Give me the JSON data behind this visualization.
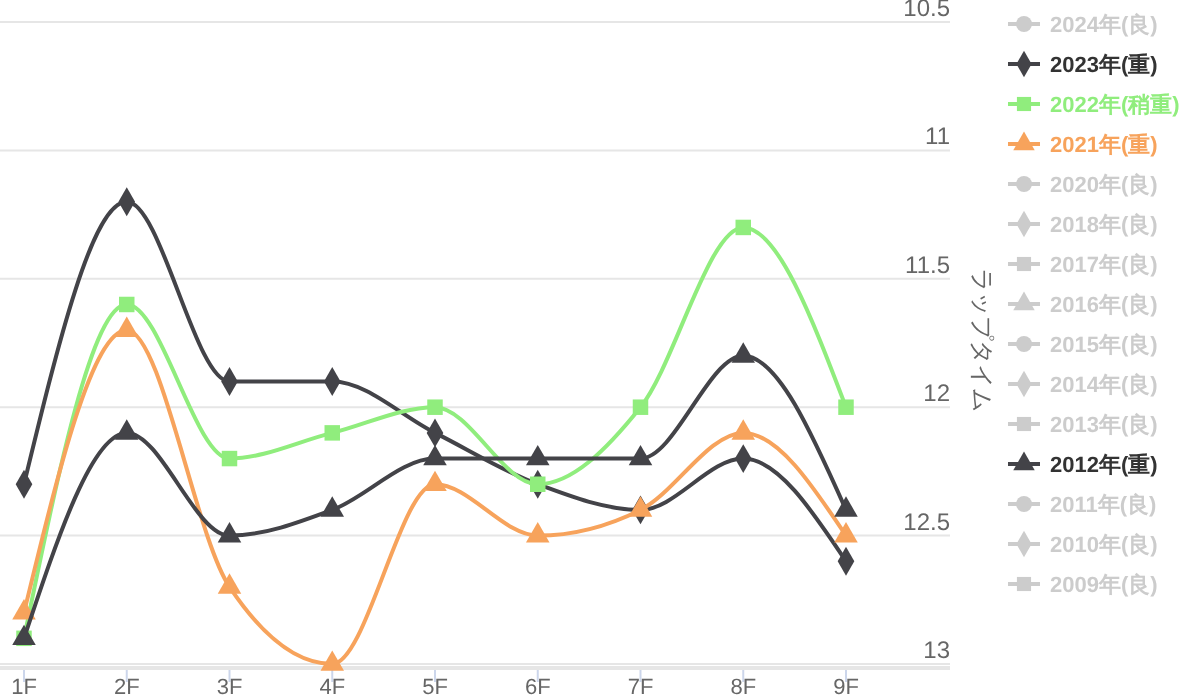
{
  "chart_data": {
    "type": "line",
    "ylabel": "ラップタイム",
    "categories": [
      "1F",
      "2F",
      "3F",
      "4F",
      "5F",
      "6F",
      "7F",
      "8F",
      "9F"
    ],
    "ylim": [
      13,
      10.5
    ],
    "yticks": [
      10.5,
      11,
      11.5,
      12,
      12.5,
      13
    ],
    "grid": "y",
    "legend": "right",
    "line_style": "solid",
    "series": [
      {
        "name": "2024年(良)",
        "color": "#cccccc",
        "marker": "circle",
        "values": [
          null,
          null,
          null,
          null,
          null,
          null,
          null,
          null,
          null
        ]
      },
      {
        "name": "2023年(重)",
        "color": "#434348",
        "marker": "diamond",
        "values": [
          12.3,
          11.2,
          11.9,
          11.9,
          12.1,
          12.3,
          12.4,
          12.2,
          12.6
        ]
      },
      {
        "name": "2022年(稍重)",
        "color": "#90ed7d",
        "marker": "square",
        "values": [
          12.9,
          11.6,
          12.2,
          12.1,
          12.0,
          12.3,
          12.0,
          11.3,
          12.0
        ]
      },
      {
        "name": "2021年(重)",
        "color": "#f7a35c",
        "marker": "triangle",
        "values": [
          12.8,
          11.7,
          12.7,
          13.0,
          12.3,
          12.5,
          12.4,
          12.1,
          12.5
        ]
      },
      {
        "name": "2020年(良)",
        "color": "#cccccc",
        "marker": "circle",
        "values": [
          null,
          null,
          null,
          null,
          null,
          null,
          null,
          null,
          null
        ]
      },
      {
        "name": "2018年(良)",
        "color": "#cccccc",
        "marker": "diamond",
        "values": [
          null,
          null,
          null,
          null,
          null,
          null,
          null,
          null,
          null
        ]
      },
      {
        "name": "2017年(良)",
        "color": "#cccccc",
        "marker": "square",
        "values": [
          null,
          null,
          null,
          null,
          null,
          null,
          null,
          null,
          null
        ]
      },
      {
        "name": "2016年(良)",
        "color": "#cccccc",
        "marker": "triangle",
        "values": [
          null,
          null,
          null,
          null,
          null,
          null,
          null,
          null,
          null
        ]
      },
      {
        "name": "2015年(良)",
        "color": "#cccccc",
        "marker": "circle",
        "values": [
          null,
          null,
          null,
          null,
          null,
          null,
          null,
          null,
          null
        ]
      },
      {
        "name": "2014年(良)",
        "color": "#cccccc",
        "marker": "diamond",
        "values": [
          null,
          null,
          null,
          null,
          null,
          null,
          null,
          null,
          null
        ]
      },
      {
        "name": "2013年(良)",
        "color": "#cccccc",
        "marker": "square",
        "values": [
          null,
          null,
          null,
          null,
          null,
          null,
          null,
          null,
          null
        ]
      },
      {
        "name": "2012年(重)",
        "color": "#434348",
        "marker": "triangle",
        "values": [
          12.9,
          12.1,
          12.5,
          12.4,
          12.2,
          12.2,
          12.2,
          11.8,
          12.4
        ]
      },
      {
        "name": "2011年(良)",
        "color": "#cccccc",
        "marker": "circle",
        "values": [
          null,
          null,
          null,
          null,
          null,
          null,
          null,
          null,
          null
        ]
      },
      {
        "name": "2010年(良)",
        "color": "#cccccc",
        "marker": "diamond",
        "values": [
          null,
          null,
          null,
          null,
          null,
          null,
          null,
          null,
          null
        ]
      },
      {
        "name": "2009年(良)",
        "color": "#cccccc",
        "marker": "square",
        "values": [
          null,
          null,
          null,
          null,
          null,
          null,
          null,
          null,
          null
        ]
      }
    ]
  }
}
